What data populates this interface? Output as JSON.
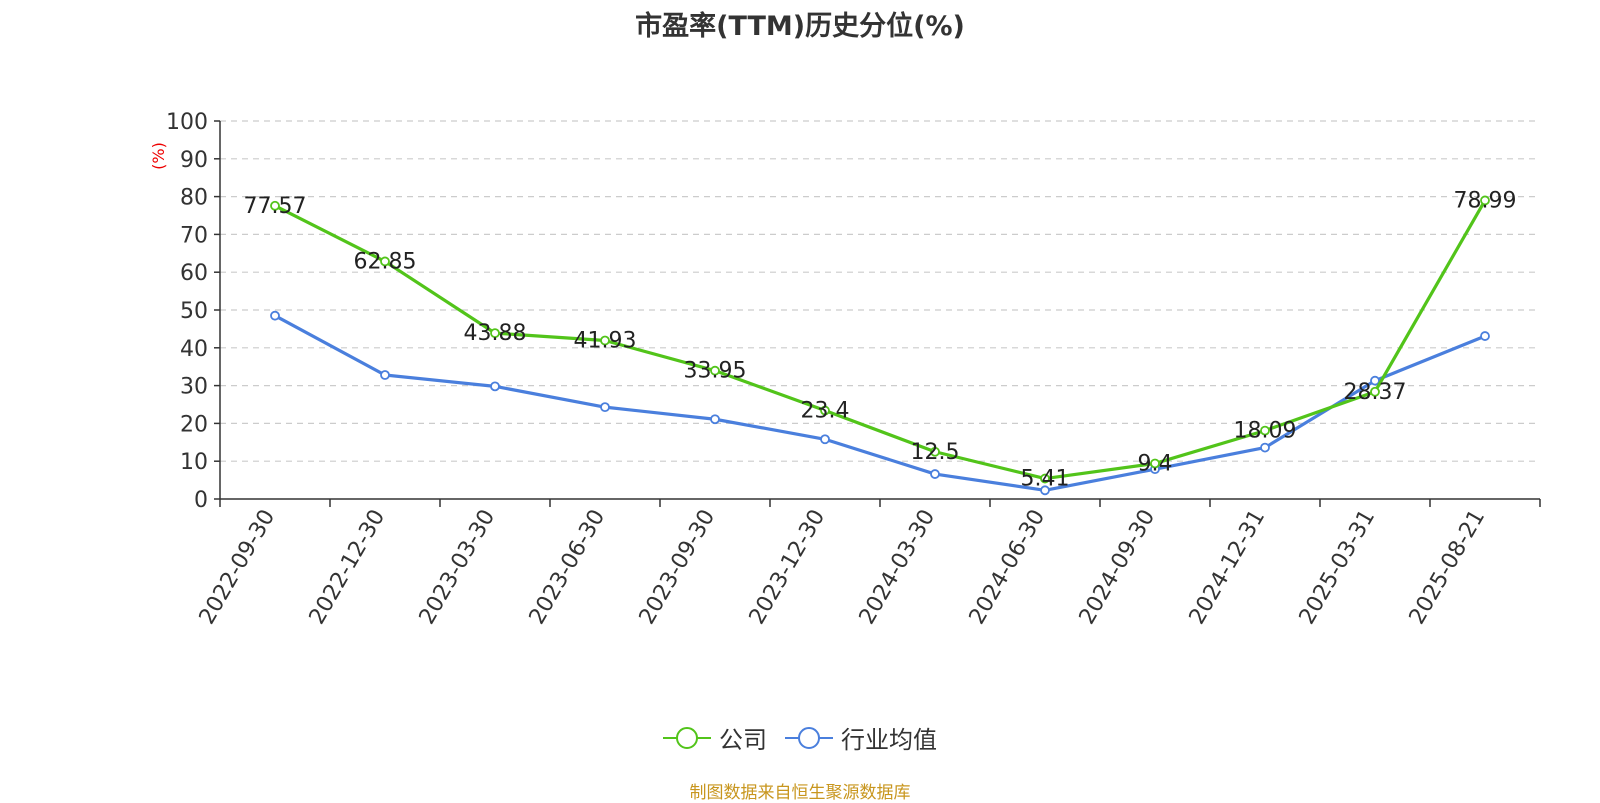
{
  "colors": {
    "company": "#52c41a",
    "industry": "#4a7fdd",
    "source": "#c8961e",
    "unit": "#ee0000"
  },
  "footer": {
    "source": "制图数据来自恒生聚源数据库"
  },
  "chart_data": {
    "type": "line",
    "title": "市盈率(TTM)历史分位(%)",
    "ylabel": "(%)",
    "ylim": [
      0,
      100
    ],
    "yticks": [
      0,
      10,
      20,
      30,
      40,
      50,
      60,
      70,
      80,
      90,
      100
    ],
    "grid": true,
    "legend_position": "bottom",
    "categories": [
      "2022-09-30",
      "2022-12-30",
      "2023-03-30",
      "2023-06-30",
      "2023-09-30",
      "2023-12-30",
      "2024-03-30",
      "2024-06-30",
      "2024-09-30",
      "2024-12-31",
      "2025-03-31",
      "2025-08-21"
    ],
    "series": [
      {
        "name": "公司",
        "values": [
          77.57,
          62.85,
          43.88,
          41.93,
          33.95,
          23.4,
          12.5,
          5.41,
          9.4,
          18.09,
          28.37,
          78.99
        ],
        "labels": [
          "77.57",
          "62.85",
          "43.88",
          "41.93",
          "33.95",
          "23.4",
          "12.5",
          "5.41",
          "9.4",
          "18.09",
          "28.37",
          "78.99"
        ],
        "color": "#52c41a"
      },
      {
        "name": "行业均值",
        "values": [
          48.5,
          32.8,
          29.8,
          24.3,
          21.1,
          15.8,
          6.6,
          2.3,
          7.9,
          13.6,
          31.3,
          43.1
        ],
        "color": "#4a7fdd"
      }
    ]
  }
}
